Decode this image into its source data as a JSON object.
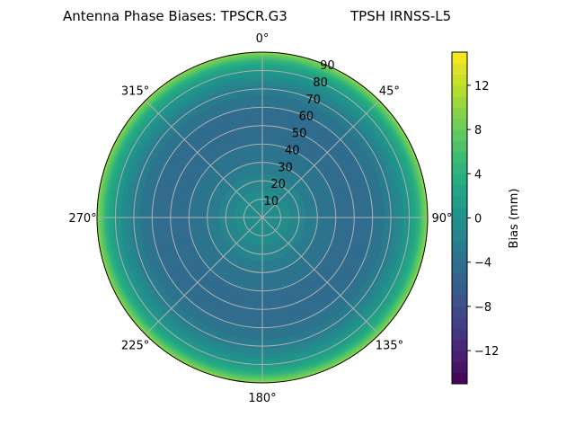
{
  "chart_data": {
    "type": "heatmap",
    "projection": "polar",
    "title_left": "Antenna Phase Biases: TPSCR.G3",
    "title_right": "TPSH IRNSS-L5",
    "angular_ticks": [
      "0°",
      "45°",
      "90°",
      "135°",
      "180°",
      "225°",
      "270°",
      "315°"
    ],
    "angular_tick_values": [
      0,
      45,
      90,
      135,
      180,
      225,
      270,
      315
    ],
    "radial_ticks": [
      "10",
      "20",
      "30",
      "40",
      "50",
      "60",
      "70",
      "80",
      "90"
    ],
    "radial_tick_values": [
      10,
      20,
      30,
      40,
      50,
      60,
      70,
      80,
      90
    ],
    "rlim": [
      0,
      90
    ],
    "grid": true,
    "colormap": "viridis",
    "colorbar": {
      "label": "Bias (mm)",
      "range": [
        -15,
        15
      ],
      "level_step": 1,
      "ticks": [
        "−12",
        "−8",
        "−4",
        "0",
        "4",
        "8",
        "12"
      ],
      "tick_values": [
        -12,
        -8,
        -4,
        0,
        4,
        8,
        12
      ]
    },
    "radial_profile": {
      "r": [
        0,
        10,
        20,
        30,
        40,
        50,
        60,
        70,
        80,
        85,
        90
      ],
      "bias_mm": [
        0,
        -0.5,
        -1.5,
        -3,
        -4,
        -4.5,
        -4,
        -2.5,
        1,
        4,
        10
      ]
    }
  }
}
